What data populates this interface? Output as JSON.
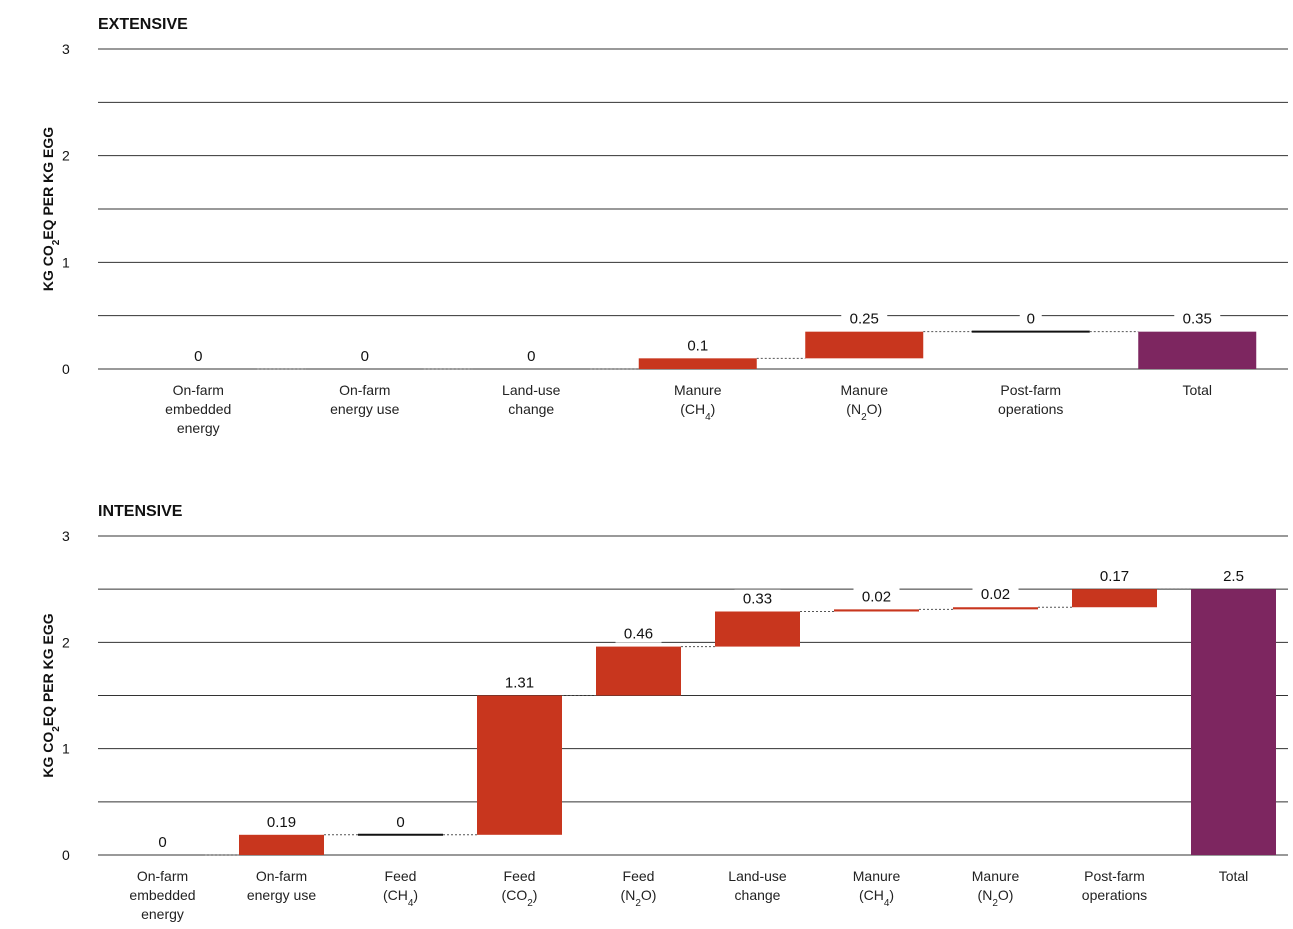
{
  "chart_data": [
    {
      "type": "bar",
      "waterfall": true,
      "title": "EXTENSIVE",
      "ylabel": "KG CO2EQ PER KG EGG",
      "ylim": [
        0,
        3
      ],
      "yticks": [
        "0",
        "1",
        "2",
        "3"
      ],
      "grid": true,
      "categories": [
        "On-farm embedded energy",
        "On-farm energy use",
        "Land-use change",
        "Manure (CH4)",
        "Manure (N2O)",
        "Post-farm operations",
        "Total"
      ],
      "values": [
        0,
        0,
        0,
        0.1,
        0.25,
        0,
        0.35
      ],
      "labels": [
        "0",
        "0",
        "0",
        "0.1",
        "0.25",
        "0",
        "0.35"
      ]
    },
    {
      "type": "bar",
      "waterfall": true,
      "title": "INTENSIVE",
      "ylabel": "KG CO2EQ PER KG EGG",
      "ylim": [
        0,
        3
      ],
      "yticks": [
        "0",
        "1",
        "2",
        "3"
      ],
      "grid": true,
      "categories": [
        "On-farm embedded energy",
        "On-farm energy use",
        "Feed (CH4)",
        "Feed (CO2)",
        "Feed (N2O)",
        "Land-use change",
        "Manure (CH4)",
        "Manure (N2O)",
        "Post-farm operations",
        "Total"
      ],
      "values": [
        0,
        0.19,
        0,
        1.31,
        0.46,
        0.33,
        0.02,
        0.02,
        0.17,
        2.5
      ],
      "labels": [
        "0",
        "0.19",
        "0",
        "1.31",
        "0.46",
        "0.33",
        "0.02",
        "0.02",
        "0.17",
        "2.5"
      ]
    }
  ],
  "colors": {
    "increase": "#c8361e",
    "total": "#7d2660",
    "grid": "#333333",
    "connector": "#555555"
  }
}
